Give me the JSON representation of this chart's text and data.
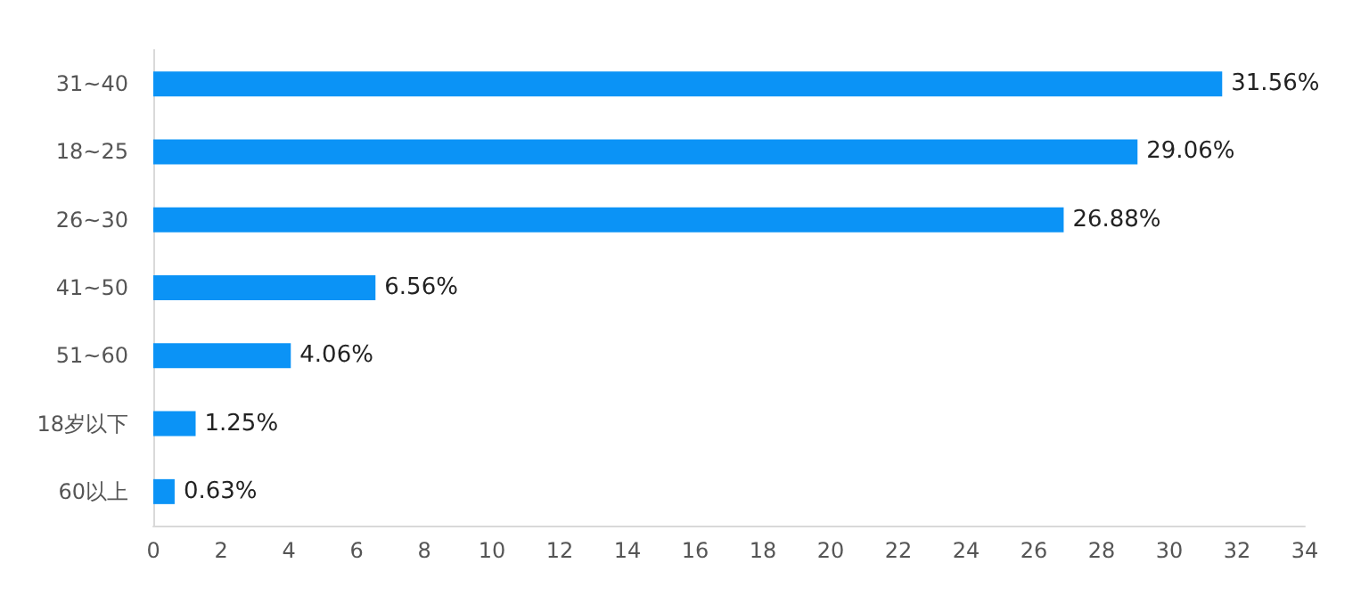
{
  "chart_data": {
    "type": "bar",
    "orientation": "horizontal",
    "categories": [
      "31~40",
      "18~25",
      "26~30",
      "41~50",
      "51~60",
      "18岁以下",
      "60以上"
    ],
    "values": [
      31.56,
      29.06,
      26.88,
      6.56,
      4.06,
      1.25,
      0.63
    ],
    "value_labels": [
      "31.56%",
      "29.06%",
      "26.88%",
      "6.56%",
      "4.06%",
      "1.25%",
      "0.63%"
    ],
    "color": "#0b93f6",
    "xlim": [
      0,
      34
    ],
    "xticks": [
      0,
      2,
      4,
      6,
      8,
      10,
      12,
      14,
      16,
      18,
      20,
      22,
      24,
      26,
      28,
      30,
      32,
      34
    ],
    "grid": false
  }
}
